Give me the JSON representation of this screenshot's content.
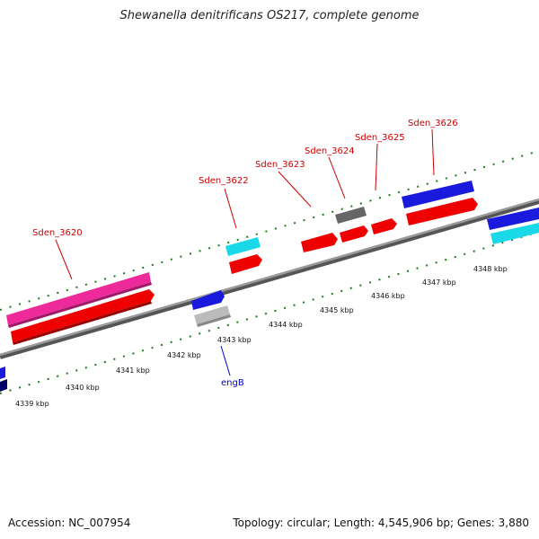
{
  "title": "Shewanella denitrificans OS217, complete genome",
  "footer": {
    "accession": "Accession: NC_007954",
    "summary": "Topology: circular; Length: 4,545,906 bp; Genes: 3,880"
  },
  "gene_labels": [
    "Sden_3620",
    "Sden_3622",
    "Sden_3623",
    "Sden_3624",
    "Sden_3625",
    "Sden_3626"
  ],
  "engB_label": "engB",
  "kbp_labels": [
    "4339 kbp",
    "4340 kbp",
    "4341 kbp",
    "4342 kbp",
    "4343 kbp",
    "4344 kbp",
    "4345 kbp",
    "4346 kbp",
    "4347 kbp",
    "4348 kbp"
  ],
  "colors": {
    "cds": "#ee0000",
    "gene_pink": "#ee2a9a",
    "gene_blue": "#1a1add",
    "gene_cyan": "#19d8e8",
    "gene_grey": "#666666",
    "gene_lightgrey": "#bbbbbb",
    "gene_navy": "#000066",
    "backbone": "#7a7a7a",
    "tick": "#1e7a1e"
  }
}
